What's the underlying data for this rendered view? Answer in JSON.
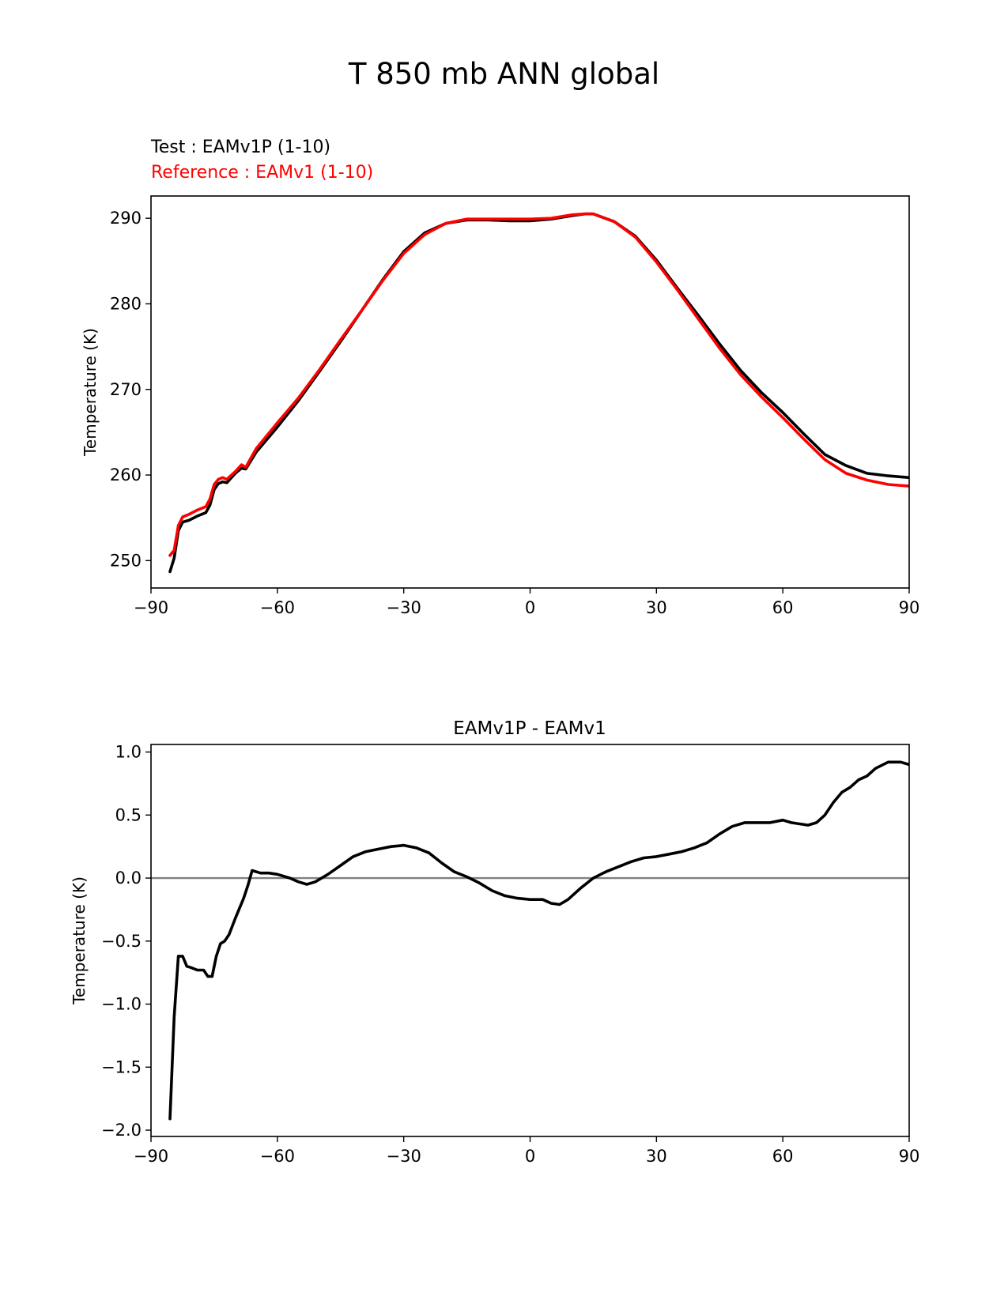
{
  "figure": {
    "title": "T 850 mb ANN global",
    "test_label": "Test : EAMv1P (1-10)",
    "reference_label": "Reference : EAMv1 (1-10)"
  },
  "colors": {
    "test": "#000000",
    "reference": "#ff0000",
    "zero_line": "#808080"
  },
  "chart_data": [
    {
      "type": "line",
      "title": "",
      "xlabel": "",
      "ylabel": "Temperature (K)",
      "xlim": [
        -90,
        90
      ],
      "ylim": [
        246.8,
        292.6
      ],
      "xticks": [
        -90,
        -60,
        -30,
        0,
        30,
        60,
        90
      ],
      "yticks": [
        250,
        260,
        270,
        280,
        290
      ],
      "series": [
        {
          "name": "Test : EAMv1P (1-10)",
          "color": "#000000",
          "x": [
            -85.5,
            -84.5,
            -83.5,
            -82.5,
            -81,
            -79,
            -77,
            -76,
            -75,
            -74,
            -73,
            -72,
            -70,
            -68.5,
            -67.5,
            -66.5,
            -65,
            -60,
            -55,
            -50,
            -45,
            -40,
            -35,
            -30,
            -25,
            -20,
            -15,
            -10,
            -5,
            0,
            5,
            10,
            13,
            15,
            20,
            25,
            30,
            35,
            40,
            45,
            50,
            55,
            60,
            65,
            70,
            75,
            80,
            85,
            90
          ],
          "y": [
            248.7,
            250.3,
            253.5,
            254.5,
            254.7,
            255.2,
            255.6,
            256.5,
            258.3,
            259.0,
            259.2,
            259.1,
            260.2,
            260.8,
            260.7,
            261.5,
            262.7,
            265.6,
            268.7,
            272.1,
            275.6,
            279.2,
            282.8,
            286.1,
            288.3,
            289.4,
            289.8,
            289.8,
            289.7,
            289.7,
            289.9,
            290.3,
            290.5,
            290.5,
            289.6,
            287.9,
            285.1,
            281.8,
            278.6,
            275.3,
            272.2,
            269.6,
            267.3,
            264.8,
            262.4,
            261.1,
            260.2,
            259.9,
            259.7
          ]
        },
        {
          "name": "Reference : EAMv1 (1-10)",
          "color": "#ff0000",
          "x": [
            -85.5,
            -84.5,
            -83.5,
            -82.5,
            -81,
            -79,
            -77,
            -76,
            -75,
            -74,
            -73,
            -72,
            -70,
            -68.5,
            -67.5,
            -66.5,
            -65,
            -60,
            -55,
            -50,
            -45,
            -40,
            -35,
            -30,
            -25,
            -20,
            -15,
            -10,
            -5,
            0,
            5,
            10,
            13,
            15,
            20,
            25,
            30,
            35,
            40,
            45,
            50,
            55,
            60,
            65,
            70,
            75,
            80,
            85,
            90
          ],
          "y": [
            250.6,
            251.2,
            254.1,
            255.1,
            255.4,
            255.9,
            256.3,
            257.2,
            258.9,
            259.5,
            259.7,
            259.5,
            260.4,
            261.2,
            260.9,
            261.8,
            263.1,
            266.1,
            269.0,
            272.3,
            275.8,
            279.2,
            282.7,
            285.9,
            288.1,
            289.4,
            289.9,
            289.9,
            289.9,
            289.9,
            290.0,
            290.4,
            290.5,
            290.5,
            289.6,
            287.8,
            284.9,
            281.6,
            278.2,
            274.8,
            271.7,
            269.1,
            266.7,
            264.2,
            261.8,
            260.2,
            259.4,
            258.9,
            258.7
          ]
        }
      ]
    },
    {
      "type": "line",
      "title": "EAMv1P - EAMv1",
      "xlabel": "",
      "ylabel": "Temperature (K)",
      "xlim": [
        -90,
        90
      ],
      "ylim": [
        -2.05,
        1.06
      ],
      "xticks": [
        -90,
        -60,
        -30,
        0,
        30,
        60,
        90
      ],
      "yticks": [
        1.0,
        0.5,
        0.0,
        -0.5,
        -1.0,
        -1.5,
        -2.0
      ],
      "ytick_labels": [
        "1.0",
        "0.5",
        "0.0",
        "−0.5",
        "−1.0",
        "−1.5",
        "−2.0"
      ],
      "zero_line": 0.0,
      "series": [
        {
          "name": "",
          "color": "#000000",
          "x": [
            -85.5,
            -84.5,
            -83.5,
            -82.5,
            -81.5,
            -80.5,
            -79,
            -77.5,
            -76.5,
            -75.5,
            -74.5,
            -73.5,
            -72.5,
            -71.5,
            -70,
            -68,
            -67,
            -66,
            -64,
            -62,
            -60,
            -57,
            -55,
            -53,
            -51,
            -48,
            -45,
            -42,
            -39,
            -36,
            -33,
            -30,
            -27,
            -24,
            -21,
            -18,
            -15,
            -12,
            -9,
            -6,
            -3,
            0,
            3,
            5,
            7,
            9,
            12,
            15,
            18,
            21,
            24,
            27,
            30,
            33,
            36,
            39,
            42,
            45,
            48,
            51,
            54,
            57,
            60,
            62,
            64,
            66,
            68,
            70,
            72,
            74,
            76,
            78,
            80,
            82,
            85,
            88,
            90
          ],
          "y": [
            -1.91,
            -1.1,
            -0.62,
            -0.62,
            -0.7,
            -0.71,
            -0.73,
            -0.73,
            -0.78,
            -0.78,
            -0.62,
            -0.52,
            -0.5,
            -0.45,
            -0.32,
            -0.16,
            -0.06,
            0.06,
            0.04,
            0.04,
            0.03,
            0.0,
            -0.03,
            -0.05,
            -0.03,
            0.03,
            0.1,
            0.17,
            0.21,
            0.23,
            0.25,
            0.26,
            0.24,
            0.2,
            0.12,
            0.05,
            0.01,
            -0.04,
            -0.1,
            -0.14,
            -0.16,
            -0.17,
            -0.17,
            -0.2,
            -0.21,
            -0.17,
            -0.08,
            0.0,
            0.05,
            0.09,
            0.13,
            0.16,
            0.17,
            0.19,
            0.21,
            0.24,
            0.28,
            0.35,
            0.41,
            0.44,
            0.44,
            0.44,
            0.46,
            0.44,
            0.43,
            0.42,
            0.44,
            0.5,
            0.6,
            0.68,
            0.72,
            0.78,
            0.81,
            0.87,
            0.92,
            0.92,
            0.9
          ]
        }
      ]
    }
  ]
}
